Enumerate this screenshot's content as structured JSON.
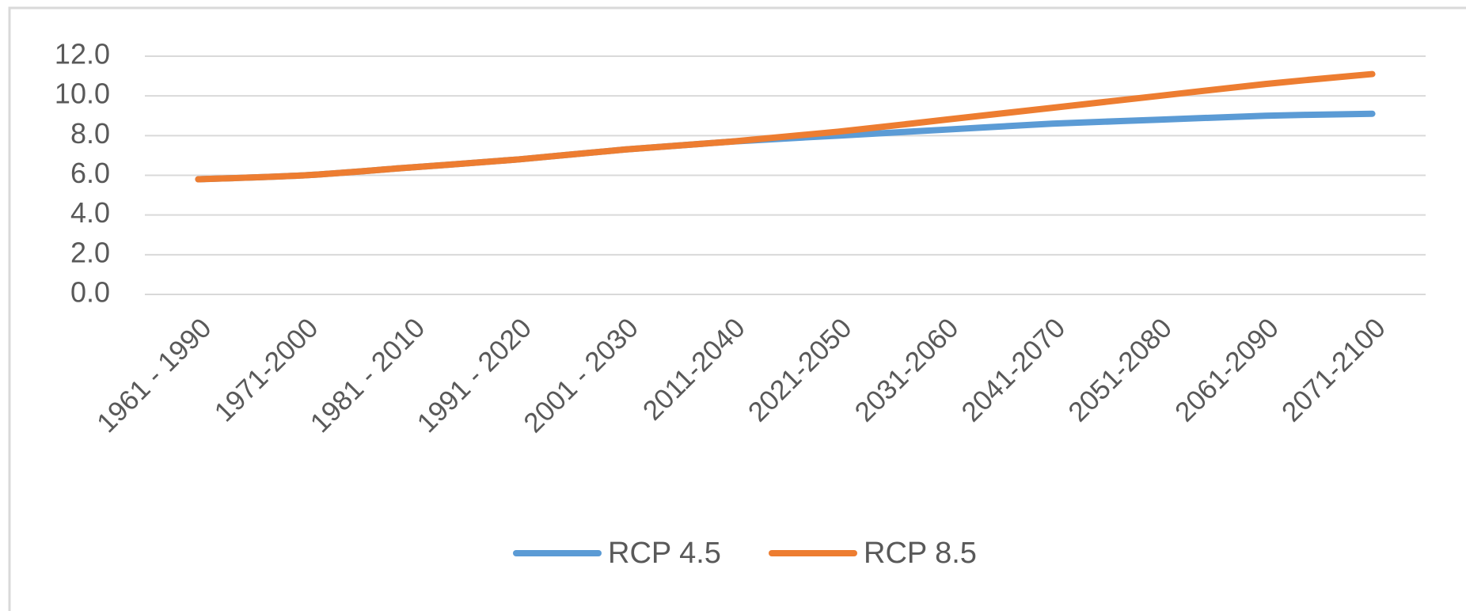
{
  "chart_data": {
    "type": "line",
    "categories": [
      "1961 - 1990",
      "1971-2000",
      "1981 - 2010",
      "1991 - 2020",
      "2001 - 2030",
      "2011-2040",
      "2021-2050",
      "2031-2060",
      "2041-2070",
      "2051-2080",
      "2061-2090",
      "2071-2100"
    ],
    "series": [
      {
        "name": "RCP 4.5",
        "color": "#5b9bd5",
        "values": [
          5.8,
          6.0,
          6.4,
          6.8,
          7.3,
          7.7,
          8.0,
          8.3,
          8.6,
          8.8,
          9.0,
          9.1
        ]
      },
      {
        "name": "RCP 8.5",
        "color": "#ed7d31",
        "values": [
          5.8,
          6.0,
          6.4,
          6.8,
          7.3,
          7.7,
          8.2,
          8.8,
          9.4,
          10.0,
          10.6,
          11.1
        ]
      }
    ],
    "ylim": [
      0,
      12
    ],
    "yticks": [
      {
        "value": 0,
        "label": "0.0"
      },
      {
        "value": 2,
        "label": "2.0"
      },
      {
        "value": 4,
        "label": "4.0"
      },
      {
        "value": 6,
        "label": "6.0"
      },
      {
        "value": 8,
        "label": "8.0"
      },
      {
        "value": 10,
        "label": "10.0"
      },
      {
        "value": 12,
        "label": "12.0"
      }
    ],
    "grid": true,
    "legend": "bottom"
  }
}
